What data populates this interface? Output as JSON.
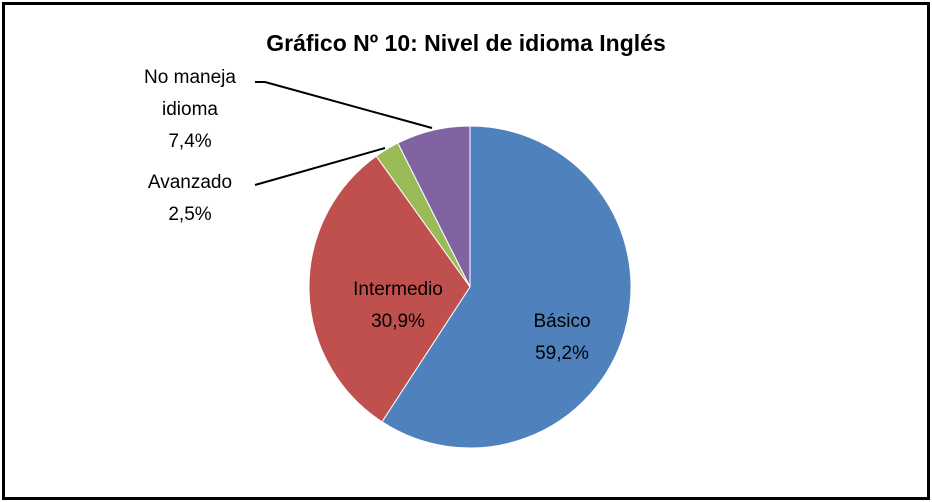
{
  "chart_data": {
    "type": "pie",
    "title": "Gráfico Nº 10: Nivel de idioma Inglés",
    "categories": [
      "Básico",
      "Intermedio",
      "Avanzado",
      "No maneja idioma"
    ],
    "values": [
      59.2,
      30.9,
      2.5,
      7.4
    ],
    "value_labels": [
      "59,2%",
      "30,9%",
      "2,5%",
      "7,4%"
    ],
    "colors": [
      "#4f81bd",
      "#c0504d",
      "#9bbb59",
      "#8064a2"
    ]
  }
}
